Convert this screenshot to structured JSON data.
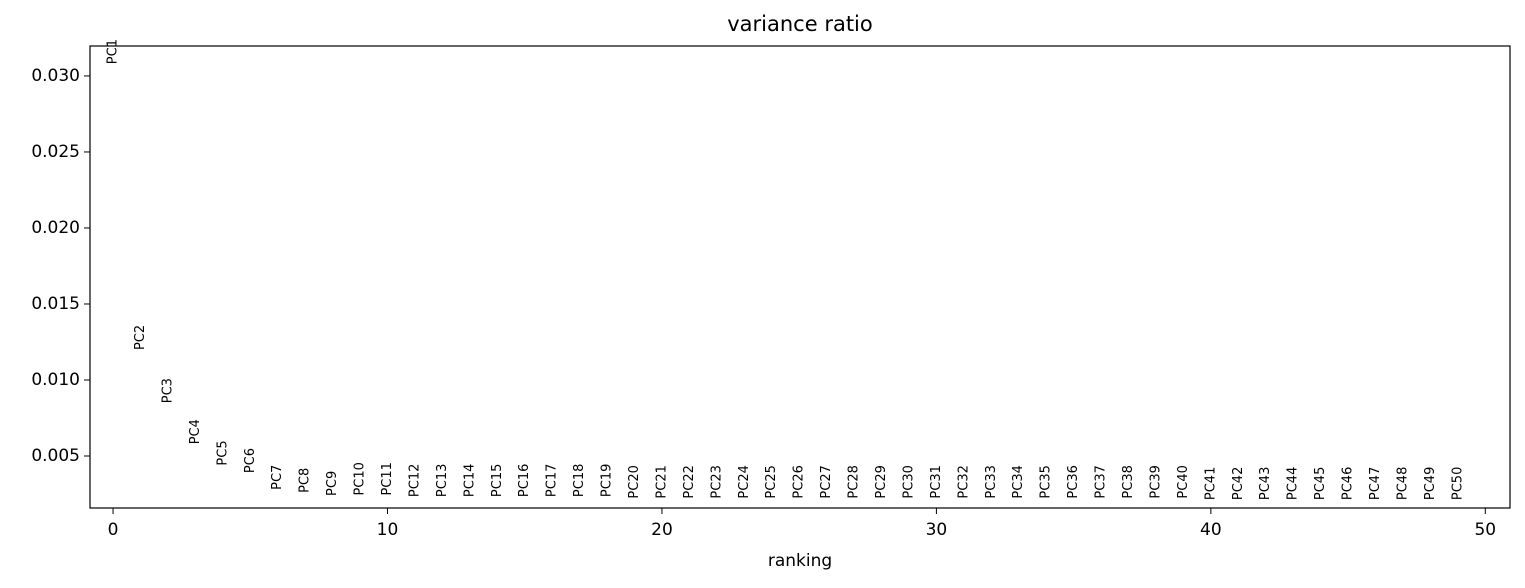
{
  "chart_data": {
    "type": "scatter",
    "title": "variance ratio",
    "x_label": "ranking",
    "categories": [
      "PC1",
      "PC2",
      "PC3",
      "PC4",
      "PC5",
      "PC6",
      "PC7",
      "PC8",
      "PC9",
      "PC10",
      "PC11",
      "PC12",
      "PC13",
      "PC14",
      "PC15",
      "PC16",
      "PC17",
      "PC18",
      "PC19",
      "PC20",
      "PC21",
      "PC22",
      "PC23",
      "PC24",
      "PC25",
      "PC26",
      "PC27",
      "PC28",
      "PC29",
      "PC30",
      "PC31",
      "PC32",
      "PC33",
      "PC34",
      "PC35",
      "PC36",
      "PC37",
      "PC38",
      "PC39",
      "PC40",
      "PC41",
      "PC42",
      "PC43",
      "PC44",
      "PC45",
      "PC46",
      "PC47",
      "PC48",
      "PC49",
      "PC50"
    ],
    "x": [
      0,
      1,
      2,
      3,
      4,
      5,
      6,
      7,
      8,
      9,
      10,
      11,
      12,
      13,
      14,
      15,
      16,
      17,
      18,
      19,
      20,
      21,
      22,
      23,
      24,
      25,
      26,
      27,
      28,
      29,
      30,
      31,
      32,
      33,
      34,
      35,
      36,
      37,
      38,
      39,
      40,
      41,
      42,
      43,
      44,
      45,
      46,
      47,
      48,
      49
    ],
    "values": [
      0.0316,
      0.0128,
      0.0093,
      0.0066,
      0.0052,
      0.0047,
      0.0036,
      0.0034,
      0.0032,
      0.0035,
      0.0035,
      0.0034,
      0.0034,
      0.0034,
      0.0034,
      0.0034,
      0.0034,
      0.0034,
      0.0034,
      0.0033,
      0.0033,
      0.0033,
      0.0033,
      0.0033,
      0.0033,
      0.0033,
      0.0033,
      0.0033,
      0.0033,
      0.0033,
      0.0033,
      0.0033,
      0.0033,
      0.0033,
      0.0033,
      0.0033,
      0.0033,
      0.0033,
      0.0033,
      0.0033,
      0.0032,
      0.0032,
      0.0032,
      0.0032,
      0.0032,
      0.0032,
      0.0032,
      0.0032,
      0.0032,
      0.0032
    ],
    "xlim": [
      -0.84,
      50.9
    ],
    "ylim": [
      0.00158,
      0.03197
    ],
    "xticks": [
      0,
      10,
      20,
      30,
      40,
      50
    ],
    "yticks": [
      0.005,
      {
        "value": 0.01,
        "label": "0.010"
      },
      0.015,
      {
        "value": 0.02,
        "label": "0.020"
      },
      0.025,
      {
        "value": 0.03,
        "label": "0.030"
      }
    ],
    "color": "#000000",
    "grid": false
  }
}
